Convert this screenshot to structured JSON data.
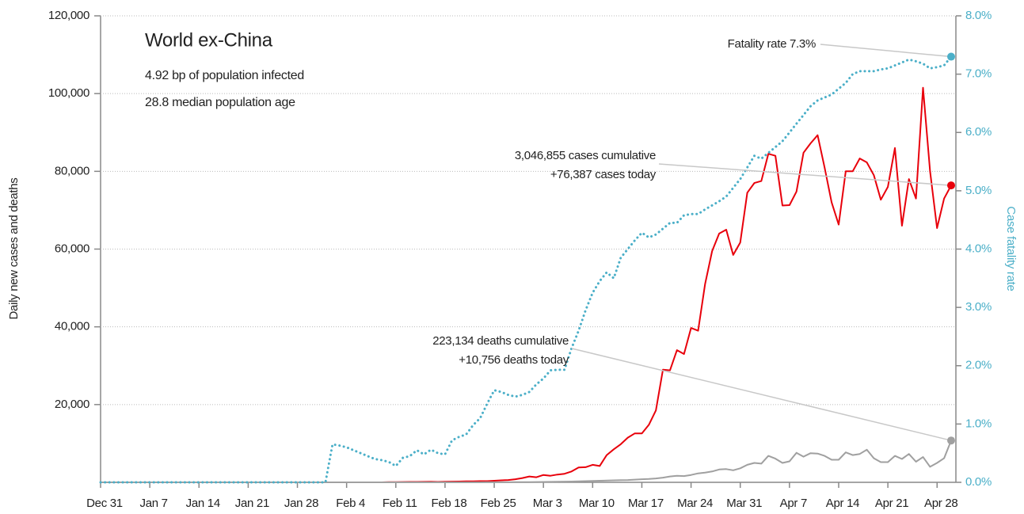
{
  "chart_data": {
    "type": "line",
    "title": "World ex-China",
    "subtitle": [
      "4.92 bp of population infected",
      "28.8 median population age"
    ],
    "ylabel": "Daily new cases and deaths",
    "y2label": "Case fatality rate",
    "annotations": [
      "Fatality rate 7.3%",
      "3,046,855 cases cumulative",
      "+76,387 cases today",
      "223,134 deaths cumulative",
      "+10,756 deaths today"
    ],
    "categories": [
      "Dec 31",
      null,
      null,
      null,
      null,
      null,
      null,
      "Jan 7",
      null,
      null,
      null,
      null,
      null,
      null,
      "Jan 14",
      null,
      null,
      null,
      null,
      null,
      null,
      "Jan 21",
      null,
      null,
      null,
      null,
      null,
      null,
      "Jan 28",
      null,
      null,
      null,
      null,
      null,
      null,
      "Feb 4",
      null,
      null,
      null,
      null,
      null,
      null,
      "Feb 11",
      null,
      null,
      null,
      null,
      null,
      null,
      "Feb 18",
      null,
      null,
      null,
      null,
      null,
      null,
      "Feb 25",
      null,
      null,
      null,
      null,
      null,
      null,
      "Mar 3",
      null,
      null,
      null,
      null,
      null,
      null,
      "Mar 10",
      null,
      null,
      null,
      null,
      null,
      null,
      "Mar 17",
      null,
      null,
      null,
      null,
      null,
      null,
      "Mar 24",
      null,
      null,
      null,
      null,
      null,
      null,
      "Mar 31",
      null,
      null,
      null,
      null,
      null,
      null,
      "Apr 7",
      null,
      null,
      null,
      null,
      null,
      null,
      "Apr 14",
      null,
      null,
      null,
      null,
      null,
      null,
      "Apr 21",
      null,
      null,
      null,
      null,
      null,
      null,
      "Apr 28",
      null,
      null
    ],
    "series": [
      {
        "name": "Cases",
        "color": "#e8000b",
        "style": "solid",
        "values": [
          0,
          0,
          0,
          0,
          0,
          0,
          0,
          0,
          0,
          0,
          0,
          0,
          0,
          0,
          0,
          0,
          0,
          0,
          0,
          0,
          0,
          0,
          0,
          0,
          0,
          0,
          0,
          0,
          0,
          0,
          0,
          0,
          0,
          0,
          0,
          0,
          0,
          0,
          0,
          0,
          0,
          50,
          60,
          80,
          100,
          100,
          120,
          150,
          100,
          150,
          180,
          200,
          250,
          250,
          300,
          300,
          400,
          500,
          600,
          800,
          1100,
          1500,
          1300,
          1900,
          1700,
          2000,
          2200,
          2800,
          3800,
          3900,
          4500,
          4200,
          7000,
          8500,
          9800,
          11500,
          12600,
          12600,
          14800,
          18500,
          29000,
          28800,
          34000,
          33000,
          39700,
          39000,
          51000,
          59500,
          64000,
          65000,
          58500,
          61700,
          74500,
          77000,
          77500,
          84500,
          84000,
          71200,
          71300,
          74800,
          84800,
          87200,
          89300,
          81000,
          72000,
          66300,
          80000,
          80000,
          83300,
          82300,
          79000,
          72700,
          76000,
          86000,
          66000,
          78000,
          73000,
          101500,
          80000,
          65400,
          73000,
          76387
        ]
      },
      {
        "name": "Deaths",
        "color": "#a0a0a0",
        "style": "solid",
        "values": [
          0,
          0,
          0,
          0,
          0,
          0,
          0,
          0,
          0,
          0,
          0,
          0,
          0,
          0,
          0,
          0,
          0,
          0,
          0,
          0,
          0,
          0,
          0,
          0,
          0,
          0,
          0,
          0,
          0,
          0,
          0,
          0,
          0,
          0,
          0,
          0,
          0,
          0,
          0,
          0,
          0,
          0,
          0,
          0,
          0,
          0,
          0,
          0,
          0,
          0,
          0,
          5,
          5,
          10,
          10,
          15,
          20,
          25,
          30,
          40,
          50,
          60,
          80,
          100,
          120,
          150,
          180,
          200,
          250,
          300,
          350,
          400,
          450,
          500,
          550,
          600,
          700,
          800,
          850,
          1000,
          1200,
          1500,
          1700,
          1600,
          1900,
          2300,
          2500,
          2800,
          3300,
          3400,
          3100,
          3600,
          4500,
          5000,
          4800,
          6800,
          6100,
          5000,
          5400,
          7600,
          6600,
          7500,
          7400,
          6800,
          5800,
          5800,
          7700,
          7000,
          7300,
          8400,
          6200,
          5200,
          5200,
          6800,
          6000,
          7300,
          5300,
          6500,
          4000,
          5000,
          6200,
          10756
        ]
      },
      {
        "name": "Fatality rate",
        "color": "#4bafc8",
        "style": "dotted",
        "axis": "y2",
        "values": [
          0,
          0,
          0,
          0,
          0,
          0,
          0,
          0,
          0,
          0,
          0,
          0,
          0,
          0,
          0,
          0,
          0,
          0,
          0,
          0,
          0,
          0,
          0,
          0,
          0,
          0,
          0,
          0,
          0,
          0,
          0,
          0,
          0,
          0.65,
          0.63,
          0.6,
          0.55,
          0.5,
          0.45,
          0.4,
          0.38,
          0.35,
          0.28,
          0.42,
          0.45,
          0.55,
          0.48,
          0.56,
          0.5,
          0.48,
          0.72,
          0.78,
          0.82,
          0.98,
          1.1,
          1.35,
          1.58,
          1.55,
          1.5,
          1.47,
          1.5,
          1.55,
          1.68,
          1.78,
          1.92,
          1.93,
          1.93,
          2.3,
          2.6,
          2.95,
          3.25,
          3.45,
          3.6,
          3.5,
          3.85,
          4.0,
          4.15,
          4.28,
          4.2,
          4.25,
          4.35,
          4.45,
          4.45,
          4.58,
          4.6,
          4.6,
          4.68,
          4.75,
          4.82,
          4.9,
          5.05,
          5.2,
          5.4,
          5.6,
          5.55,
          5.65,
          5.75,
          5.85,
          6.0,
          6.15,
          6.3,
          6.45,
          6.55,
          6.6,
          6.65,
          6.75,
          6.85,
          7.0,
          7.05,
          7.05,
          7.05,
          7.08,
          7.1,
          7.15,
          7.2,
          7.25,
          7.22,
          7.18,
          7.1,
          7.12,
          7.15,
          7.3
        ]
      }
    ],
    "ylim": [
      0,
      120000
    ],
    "yticks": [
      {
        "value": 20000,
        "label": "20,000"
      },
      {
        "value": 40000,
        "label": "40,000"
      },
      {
        "value": 60000,
        "label": "60,000"
      },
      {
        "value": 80000,
        "label": "80,000"
      },
      {
        "value": 100000,
        "label": "100,000"
      },
      {
        "value": 120000,
        "label": "120,000"
      }
    ],
    "y2lim": [
      0,
      8
    ],
    "y2ticks": [
      {
        "value": 0,
        "label": "0.0%"
      },
      {
        "value": 1,
        "label": "1.0%"
      },
      {
        "value": 2,
        "label": "2.0%"
      },
      {
        "value": 3,
        "label": "3.0%"
      },
      {
        "value": 4,
        "label": "4.0%"
      },
      {
        "value": 5,
        "label": "5.0%"
      },
      {
        "value": 6,
        "label": "6.0%"
      },
      {
        "value": 7,
        "label": "7.0%"
      },
      {
        "value": 8,
        "label": "8.0%"
      }
    ],
    "grid": true
  }
}
